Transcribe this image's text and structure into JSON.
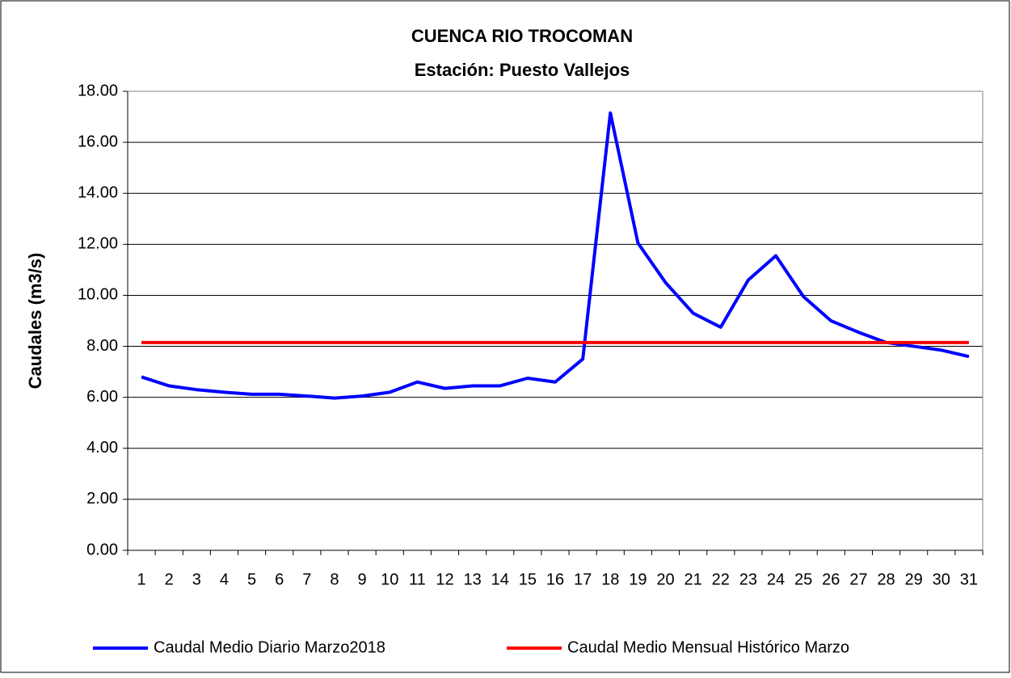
{
  "chart_data": {
    "type": "line",
    "title": "CUENCA RIO TROCOMAN",
    "subtitle": "Estación: Puesto Vallejos",
    "y_label": "Caudales (m3/s)",
    "categories": [
      "1",
      "2",
      "3",
      "4",
      "5",
      "6",
      "7",
      "8",
      "9",
      "10",
      "11",
      "12",
      "13",
      "14",
      "15",
      "16",
      "17",
      "18",
      "19",
      "20",
      "21",
      "22",
      "23",
      "24",
      "25",
      "26",
      "27",
      "28",
      "29",
      "30",
      "31"
    ],
    "series": [
      {
        "name": "Caudal Medio Diario Marzo2018",
        "color": "#0000ff",
        "values": [
          6.8,
          6.45,
          6.3,
          6.2,
          6.12,
          6.12,
          6.05,
          5.97,
          6.05,
          6.2,
          6.6,
          6.35,
          6.45,
          6.45,
          6.75,
          6.6,
          7.5,
          17.15,
          12.05,
          10.5,
          9.3,
          8.75,
          10.6,
          11.55,
          9.95,
          9.0,
          8.55,
          8.15,
          8.0,
          7.85,
          7.6
        ]
      },
      {
        "name": "Caudal Medio Mensual Histórico Marzo",
        "color": "#ff0000",
        "values": [
          8.15,
          8.15,
          8.15,
          8.15,
          8.15,
          8.15,
          8.15,
          8.15,
          8.15,
          8.15,
          8.15,
          8.15,
          8.15,
          8.15,
          8.15,
          8.15,
          8.15,
          8.15,
          8.15,
          8.15,
          8.15,
          8.15,
          8.15,
          8.15,
          8.15,
          8.15,
          8.15,
          8.15,
          8.15,
          8.15,
          8.15
        ]
      }
    ],
    "ylim": [
      0,
      18
    ],
    "yticks": [
      {
        "value": 0,
        "label": "0.00"
      },
      {
        "value": 2,
        "label": "2.00"
      },
      {
        "value": 4,
        "label": "4.00"
      },
      {
        "value": 6,
        "label": "6.00"
      },
      {
        "value": 8,
        "label": "8.00"
      },
      {
        "value": 10,
        "label": "10.00"
      },
      {
        "value": 12,
        "label": "12.00"
      },
      {
        "value": 14,
        "label": "14.00"
      },
      {
        "value": 16,
        "label": "16.00"
      },
      {
        "value": 18,
        "label": "18.00"
      }
    ],
    "grid": true,
    "legend": "bottom"
  }
}
